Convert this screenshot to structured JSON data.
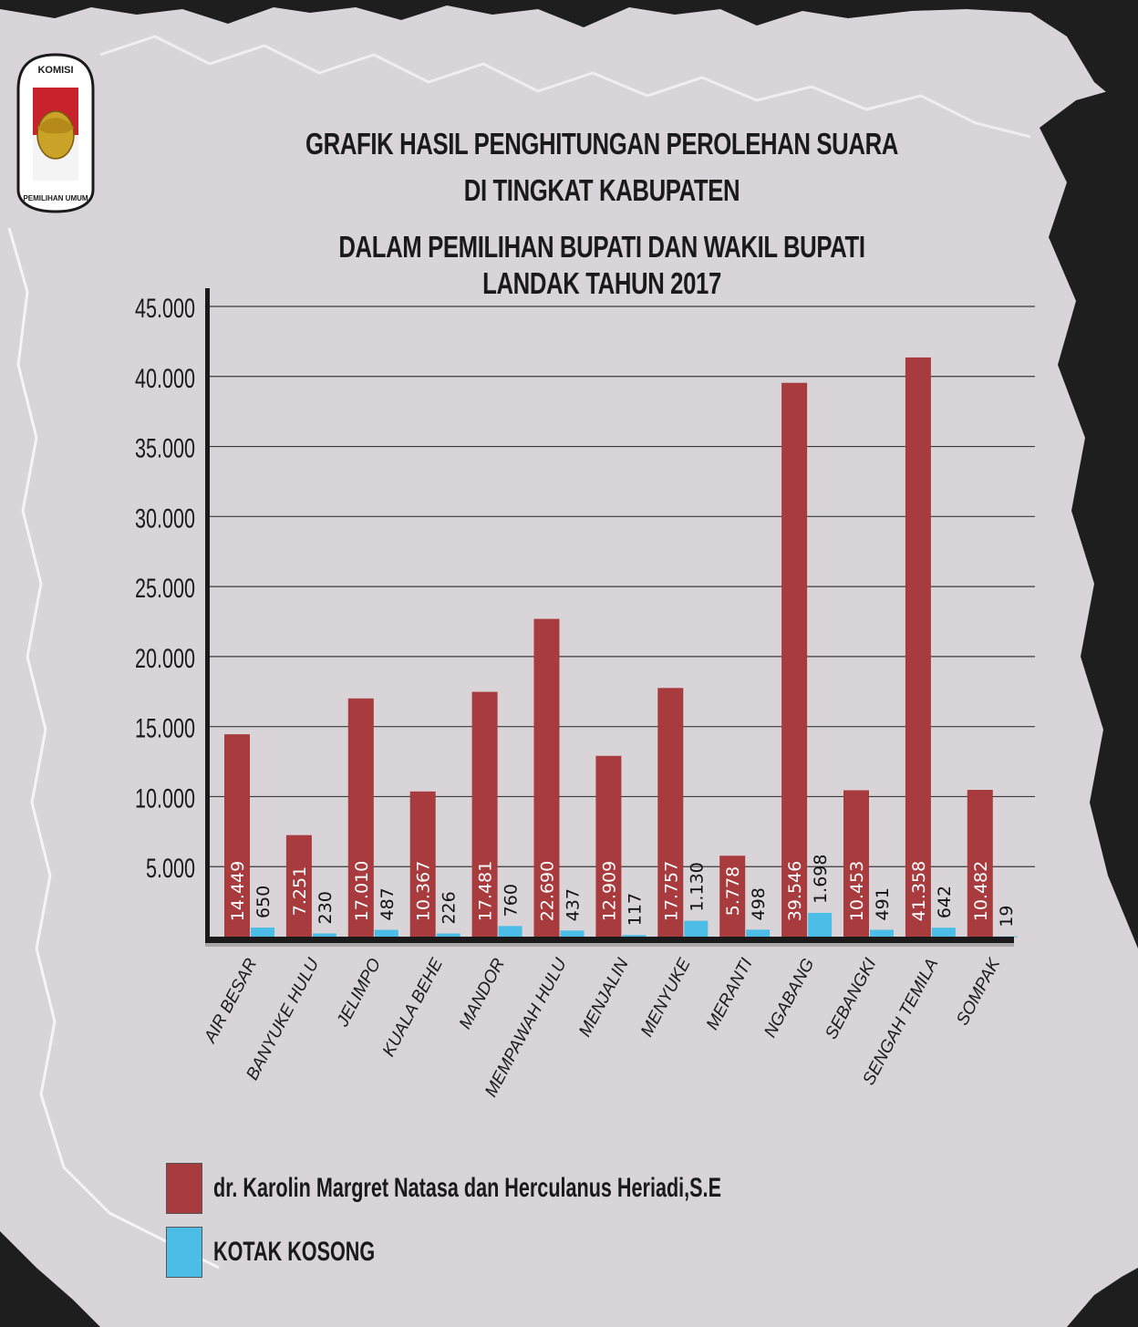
{
  "logo": {
    "top_text": "KOMISI",
    "bottom_text": "PEMILIHAN UMUM"
  },
  "title_lines": [
    "GRAFIK HASIL PENGHITUNGAN PEROLEHAN SUARA",
    "DI TINGKAT KABUPATEN",
    "DALAM PEMILIHAN BUPATI DAN WAKIL BUPATI LANDAK TAHUN 2017"
  ],
  "colors": {
    "series_1": "#a83b3d",
    "series_2": "#4cbde6",
    "background": "#d9d4d8",
    "dark_frame": "#1e1e1e"
  },
  "chart_data": {
    "type": "bar",
    "title": "GRAFIK HASIL PENGHITUNGAN PEROLEHAN SUARA DI TINGKAT KABUPATEN DALAM PEMILIHAN BUPATI DAN WAKIL BUPATI LANDAK TAHUN 2017",
    "categories": [
      "AIR BESAR",
      "BANYUKE HULU",
      "JELIMPO",
      "KUALA BEHE",
      "MANDOR",
      "MEMPAWAH HULU",
      "MENJALIN",
      "MENYUKE",
      "MERANTI",
      "NGABANG",
      "SEBANGKI",
      "SENGAH TEMILA",
      "SOMPAK"
    ],
    "series": [
      {
        "name": "dr. Karolin Margret Natasa dan Herculanus Heriadi,S.E",
        "values": [
          14449,
          7251,
          17010,
          10367,
          17481,
          22690,
          12909,
          17757,
          5778,
          39546,
          10453,
          41358,
          10482
        ],
        "labels": [
          "14.449",
          "7.251",
          "17.010",
          "10.367",
          "17.481",
          "22.690",
          "12.909",
          "17.757",
          "5.778",
          "39.546",
          "10.453",
          "41.358",
          "10.482"
        ]
      },
      {
        "name": "KOTAK KOSONG",
        "values": [
          650,
          230,
          487,
          226,
          760,
          437,
          117,
          1130,
          498,
          1698,
          491,
          642,
          19
        ],
        "labels": [
          "650",
          "230",
          "487",
          "226",
          "760",
          "437",
          "117",
          "1.130",
          "498",
          "1.698",
          "491",
          "642",
          "19"
        ]
      }
    ],
    "ylim": [
      0,
      45000
    ],
    "yticks": [
      5000,
      10000,
      15000,
      20000,
      25000,
      30000,
      35000,
      40000,
      45000
    ],
    "ytick_labels": [
      "5.000",
      "10.000",
      "15.000",
      "20.000",
      "25.000",
      "30.000",
      "35.000",
      "40.000",
      "45.000"
    ],
    "grid": true,
    "legend_position": "bottom-left",
    "xlabel": "",
    "ylabel": ""
  }
}
